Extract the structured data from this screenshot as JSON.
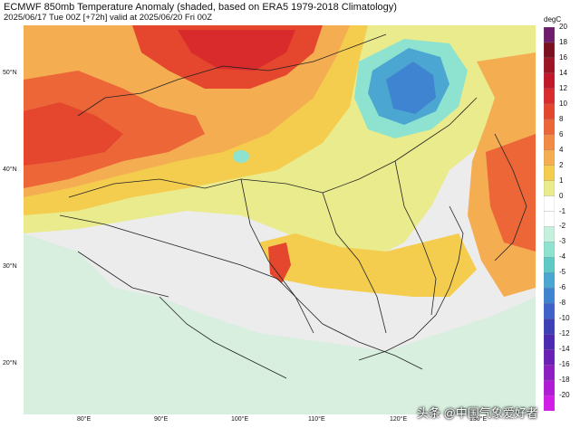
{
  "header": {
    "title": "ECMWF 850mb Temperature Anomaly (shaded, based on ERA5 1979-2018 Climatology)",
    "subtitle": "2025/06/17 Tue 00Z [+72h] valid at 2025/06/20 Fri 00Z"
  },
  "axes": {
    "lat_labels": [
      "50°N",
      "40°N",
      "30°N",
      "20°N"
    ],
    "lon_labels": [
      "80°E",
      "90°E",
      "100°E",
      "110°E",
      "120°E",
      "130°E"
    ]
  },
  "colorbar": {
    "unit": "degC",
    "labels": [
      "20",
      "18",
      "16",
      "14",
      "12",
      "10",
      "8",
      "6",
      "4",
      "2",
      "1",
      "0",
      "-1",
      "-2",
      "-3",
      "-4",
      "-5",
      "-6",
      "-8",
      "-10",
      "-12",
      "-14",
      "-16",
      "-18",
      "-20"
    ],
    "colors": [
      "#6e1d6e",
      "#7a1020",
      "#9c1426",
      "#c2182a",
      "#d92a2c",
      "#e4462e",
      "#ec6638",
      "#f28b45",
      "#f5ad52",
      "#f4cc4e",
      "#eaeb8c",
      "#ffffff",
      "#ffffff",
      "#c6f0de",
      "#8de3cf",
      "#5fc9c6",
      "#4ca6d2",
      "#3f84d0",
      "#3e62c8",
      "#3d3fb8",
      "#4b29b0",
      "#6a1fb6",
      "#8c1ec4",
      "#b01bd6",
      "#d21ce8"
    ]
  },
  "watermark": "头条 @中国气象爱好者",
  "legend_colors": {
    "strong_warm": "#d92a2c",
    "warm": "#ec6638",
    "mild_warm": "#f5ad52",
    "slight_warm": "#f4cc4e",
    "very_slight_warm": "#eaeb8c",
    "neutral": "#ececec",
    "slight_cool": "#8de3cf",
    "cool": "#4ca6d2",
    "cold": "#3f84d0"
  }
}
